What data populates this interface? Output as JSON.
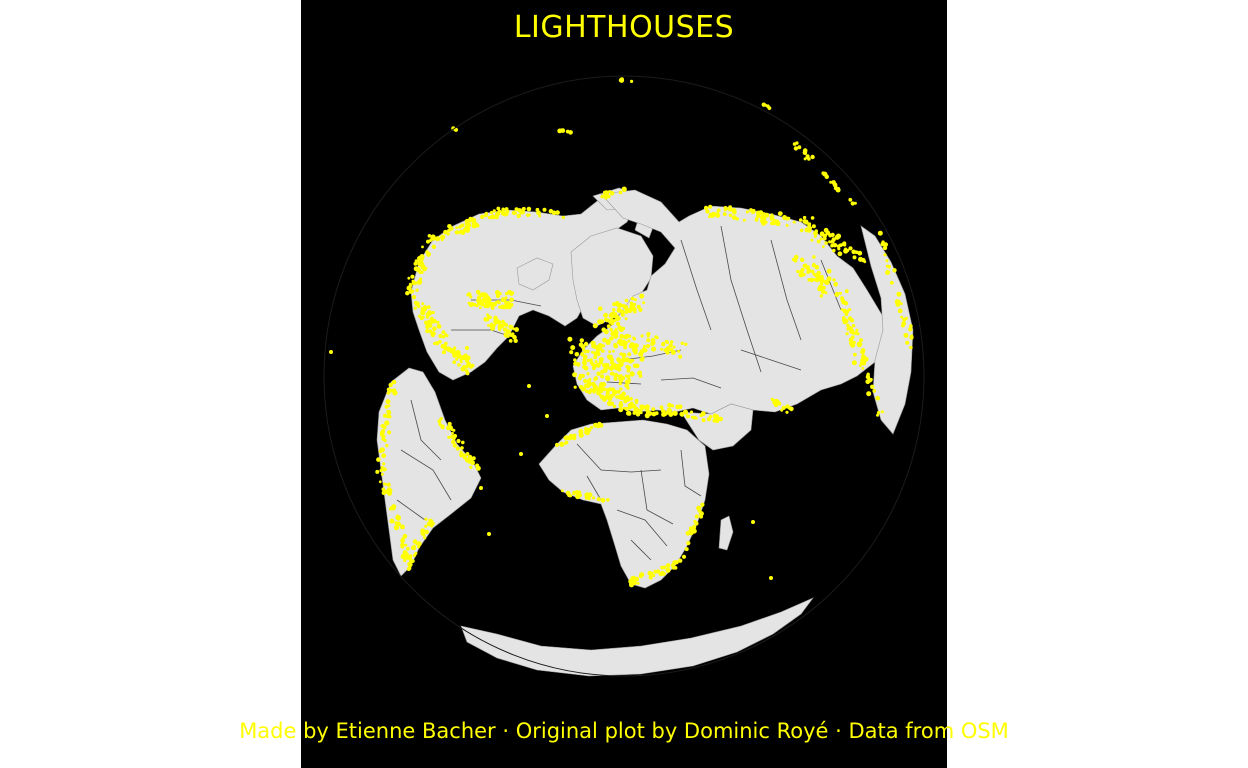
{
  "map": {
    "title": "LIGHTHOUSES",
    "caption": "Made by Etienne Bacher · Original plot by Dominic Royé · Data from OSM",
    "projection": "orthographic-globe",
    "layers": [
      "land",
      "country-borders",
      "lighthouse-points"
    ]
  },
  "colors": {
    "background": "#000000",
    "page": "#ffffff",
    "land": "#e4e4e4",
    "borders": "#4a4a4a",
    "points": "#ffff00",
    "text": "#ffff00"
  }
}
